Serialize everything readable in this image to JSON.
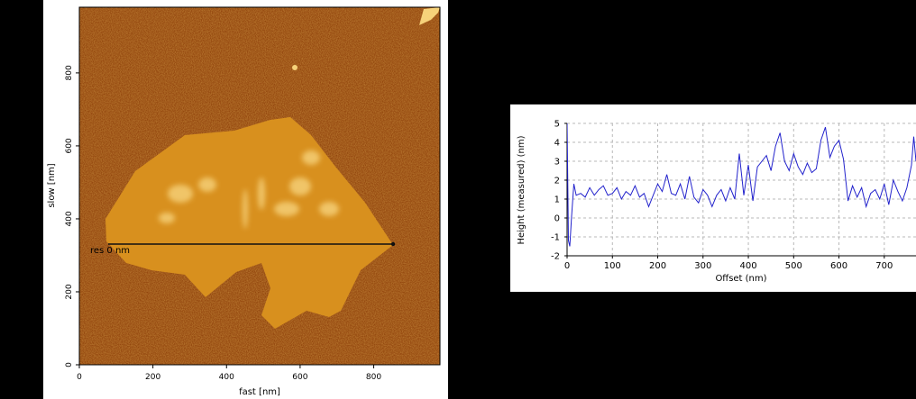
{
  "afm_image": {
    "xlabel": "fast [nm]",
    "ylabel": "slow [nm]",
    "x_ticks": [
      "0",
      "200",
      "400",
      "600",
      "800"
    ],
    "y_ticks": [
      "0",
      "200",
      "400",
      "600",
      "800"
    ],
    "profile_label": "res 0 nm",
    "colors": {
      "background": "#8a3a05",
      "flake": "#d8901e",
      "highlight": "#f6d27a",
      "line": "#101010"
    }
  },
  "chart_data": {
    "type": "line",
    "xlabel": "Offset (nm)",
    "ylabel": "Height (measured) (nm)",
    "xlim": [
      0,
      770
    ],
    "ylim": [
      -2,
      5
    ],
    "grid": true,
    "x_ticks": [
      "0",
      "100",
      "200",
      "300",
      "400",
      "500",
      "600",
      "700"
    ],
    "y_ticks": [
      "-2",
      "-1",
      "0",
      "1",
      "2",
      "3",
      "4",
      "5"
    ],
    "line_color": "#2222cc",
    "series": [
      {
        "x": [
          0,
          3,
          6,
          10,
          15,
          20,
          30,
          40,
          50,
          60,
          70,
          80,
          90,
          100,
          110,
          120,
          130,
          140,
          150,
          160,
          170,
          180,
          190,
          200,
          210,
          220,
          230,
          240,
          250,
          260,
          270,
          280,
          290,
          300,
          310,
          320,
          330,
          340,
          350,
          360,
          370,
          380,
          390,
          400,
          410,
          420,
          430,
          440,
          450,
          460,
          470,
          480,
          490,
          500,
          510,
          520,
          530,
          540,
          550,
          560,
          570,
          580,
          590,
          600,
          610,
          620,
          630,
          640,
          650,
          660,
          670,
          680,
          690,
          700,
          710,
          720,
          730,
          740,
          750,
          760,
          765,
          770
        ],
        "y": [
          5,
          -1.2,
          -1.5,
          0.1,
          1.8,
          1.2,
          1.3,
          1.1,
          1.6,
          1.2,
          1.5,
          1.7,
          1.2,
          1.3,
          1.6,
          1.0,
          1.4,
          1.2,
          1.7,
          1.1,
          1.3,
          0.6,
          1.2,
          1.8,
          1.4,
          2.3,
          1.3,
          1.2,
          1.8,
          1.0,
          2.2,
          1.1,
          0.8,
          1.5,
          1.2,
          0.6,
          1.2,
          1.5,
          0.9,
          1.6,
          1.0,
          3.4,
          1.2,
          2.8,
          0.9,
          2.7,
          3.0,
          3.3,
          2.5,
          3.8,
          4.5,
          3.0,
          2.5,
          3.4,
          2.7,
          2.3,
          2.9,
          2.4,
          2.6,
          4.1,
          4.8,
          3.2,
          3.8,
          4.1,
          3.1,
          0.9,
          1.7,
          1.1,
          1.6,
          0.6,
          1.3,
          1.5,
          1.0,
          1.8,
          0.7,
          2.0,
          1.4,
          0.9,
          1.6,
          2.8,
          4.3,
          3.0
        ]
      }
    ]
  }
}
